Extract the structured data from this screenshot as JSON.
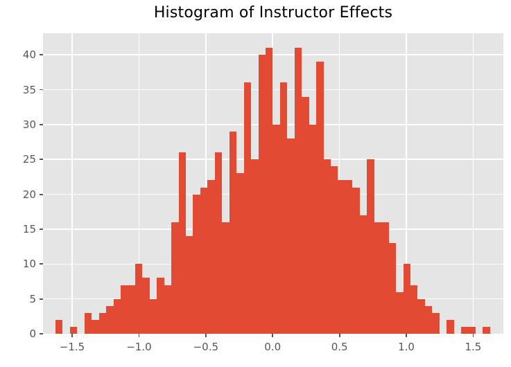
{
  "title": "Histogram of Instructor Effects",
  "colors": {
    "bar": "#e24a33",
    "plot_background": "#e5e5e5",
    "figure_background": "#ffffff",
    "gridline": "#ffffff",
    "tick_label": "#555555",
    "title_text": "#000000"
  },
  "chart_data": {
    "type": "bar",
    "subtype": "histogram",
    "title": "Histogram of Instructor Effects",
    "xlabel": "",
    "ylabel": "",
    "grid": true,
    "legend": false,
    "bin_start": -1.625,
    "bin_width": 0.0542,
    "counts": [
      2,
      0,
      1,
      0,
      3,
      2,
      3,
      4,
      5,
      7,
      7,
      10,
      8,
      5,
      8,
      7,
      16,
      26,
      14,
      20,
      21,
      22,
      26,
      16,
      29,
      23,
      36,
      25,
      40,
      41,
      30,
      36,
      28,
      41,
      34,
      30,
      39,
      25,
      24,
      22,
      22,
      21,
      17,
      25,
      16,
      16,
      13,
      6,
      10,
      7,
      5,
      4,
      3,
      0,
      2,
      0,
      1,
      1,
      0,
      1
    ],
    "xlim": [
      -1.718,
      1.726
    ],
    "ylim": [
      0,
      43.1
    ],
    "x_ticks": [
      {
        "value": -1.5,
        "label": "−1.5"
      },
      {
        "value": -1.0,
        "label": "−1.0"
      },
      {
        "value": -0.5,
        "label": "−0.5"
      },
      {
        "value": 0.0,
        "label": "0.0"
      },
      {
        "value": 0.5,
        "label": "0.5"
      },
      {
        "value": 1.0,
        "label": "1.0"
      },
      {
        "value": 1.5,
        "label": "1.5"
      }
    ],
    "y_ticks": [
      {
        "value": 0,
        "label": "0"
      },
      {
        "value": 5,
        "label": "5"
      },
      {
        "value": 10,
        "label": "10"
      },
      {
        "value": 15,
        "label": "15"
      },
      {
        "value": 20,
        "label": "20"
      },
      {
        "value": 25,
        "label": "25"
      },
      {
        "value": 30,
        "label": "30"
      },
      {
        "value": 35,
        "label": "35"
      },
      {
        "value": 40,
        "label": "40"
      }
    ]
  }
}
